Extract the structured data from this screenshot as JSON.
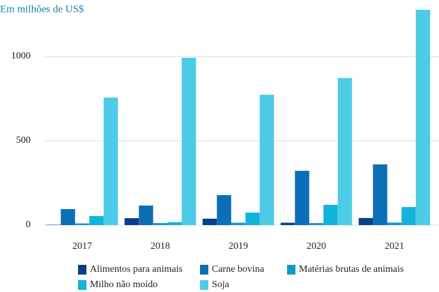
{
  "chart_data": {
    "type": "bar",
    "subtitle": "Em milhões de US$",
    "categories": [
      "2017",
      "2018",
      "2019",
      "2020",
      "2021"
    ],
    "series": [
      {
        "name": "Alimentos para animais",
        "color": "#0b3d8c",
        "values": [
          2,
          41,
          38,
          14,
          42
        ]
      },
      {
        "name": "Carne bovina",
        "color": "#0a6fb5",
        "values": [
          95,
          116,
          178,
          322,
          360
        ]
      },
      {
        "name": "Matérias brutas de animais",
        "color": "#1497c9",
        "values": [
          10,
          12,
          14,
          12,
          15
        ]
      },
      {
        "name": "Milho não moído",
        "color": "#12b4d9",
        "values": [
          54,
          17,
          74,
          120,
          107
        ]
      },
      {
        "name": "Soja",
        "color": "#4ecbe6",
        "values": [
          756,
          992,
          773,
          872,
          1277
        ]
      }
    ],
    "ylim": [
      0,
      1300
    ],
    "yticks": [
      0,
      500,
      1000
    ],
    "grid": true
  }
}
